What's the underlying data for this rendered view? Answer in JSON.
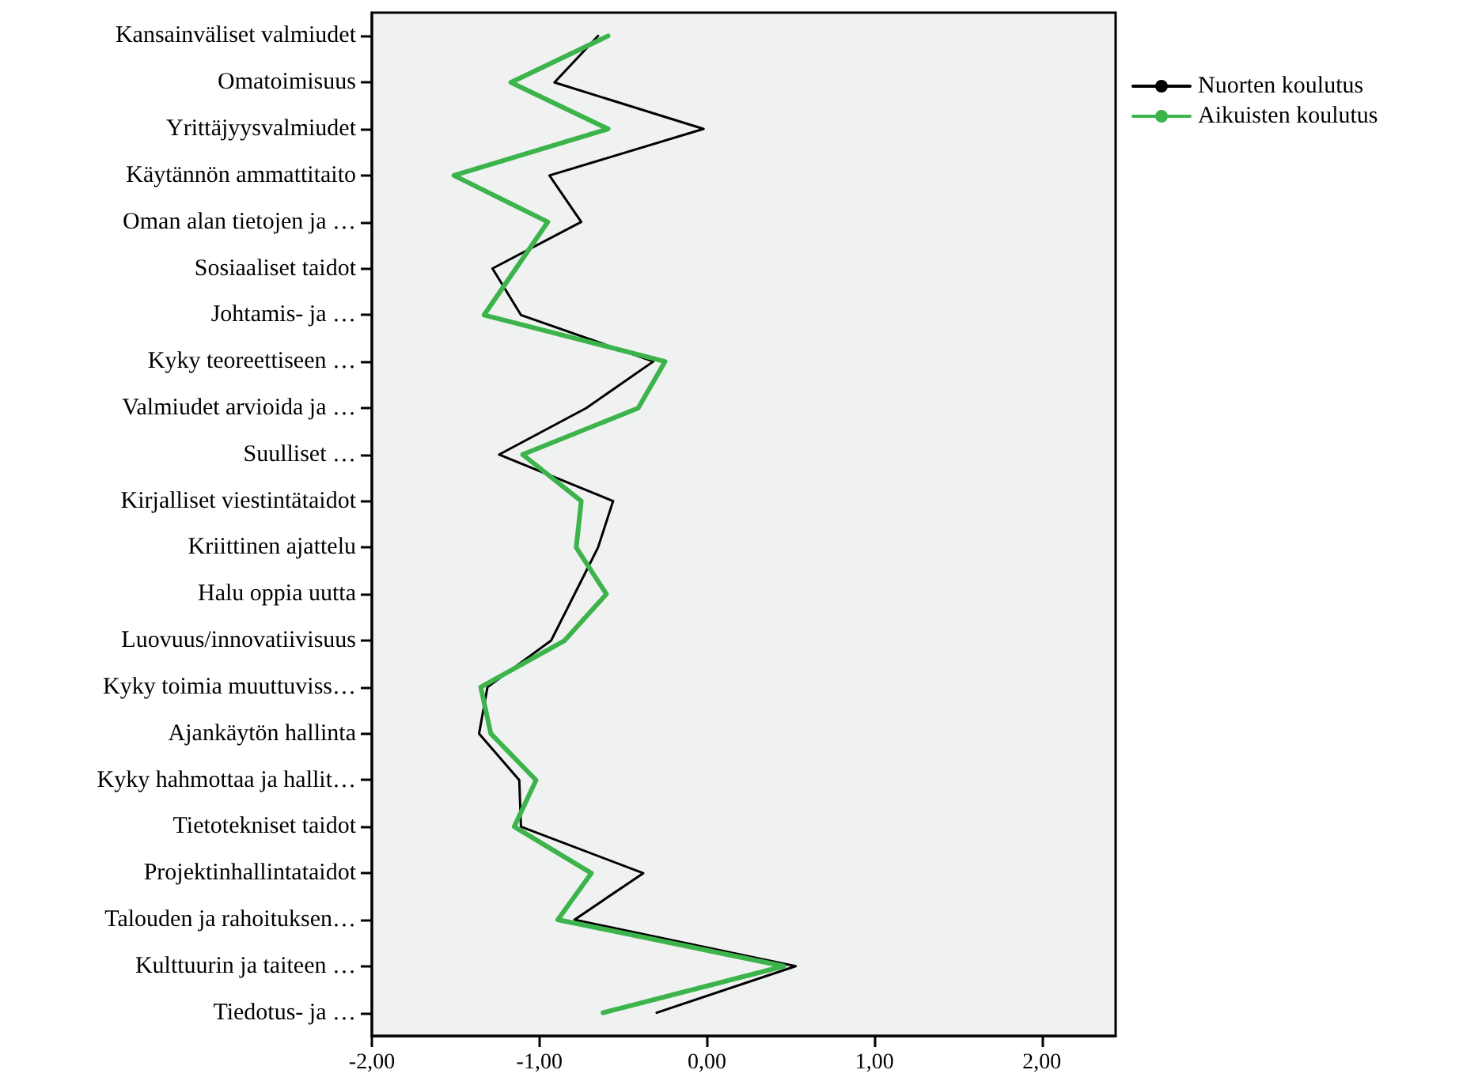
{
  "chart_data": {
    "type": "line",
    "orientation": "horizontal",
    "categories": [
      "Kansainväliset valmiudet",
      "Omatoimisuus",
      "Yrittäjyysvalmiudet",
      "Käytännön ammattitaito",
      "Oman alan tietojen ja …",
      "Sosiaaliset taidot",
      "Johtamis- ja …",
      "Kyky teoreettiseen …",
      "Valmiudet arvioida ja …",
      "Suulliset …",
      "Kirjalliset viestintätaidot",
      "Kriittinen ajattelu",
      "Halu oppia uutta",
      "Luovuus/innovatiivisuus",
      "Kyky toimia muuttuviss…",
      "Ajankäytön hallinta",
      "Kyky hahmottaa ja hallit…",
      "Tietotekniset taidot",
      "Projektinhallintataidot",
      "Talouden ja rahoituksen…",
      "Kulttuurin ja taiteen …",
      "Tiedotus- ja …"
    ],
    "series": [
      {
        "name": "Nuorten koulutus",
        "color": "#000000",
        "values": [
          -0.65,
          -0.91,
          -0.02,
          -0.94,
          -0.75,
          -1.28,
          -1.11,
          -0.32,
          -0.72,
          -1.24,
          -0.56,
          -0.65,
          -0.79,
          -0.93,
          -1.31,
          -1.36,
          -1.12,
          -1.11,
          -0.38,
          -0.79,
          0.53,
          -0.3
        ]
      },
      {
        "name": "Aikuisten koulutus",
        "color": "#3cb44b",
        "values": [
          -0.59,
          -1.17,
          -0.59,
          -1.51,
          -0.95,
          -1.14,
          -1.33,
          -0.25,
          -0.41,
          -1.1,
          -0.75,
          -0.78,
          -0.6,
          -0.85,
          -1.35,
          -1.29,
          -1.02,
          -1.15,
          -0.69,
          -0.89,
          0.46,
          -0.62
        ]
      }
    ],
    "xlim": [
      -2,
      2.44
    ],
    "xticks": [
      {
        "value": -2,
        "label": "-2,00"
      },
      {
        "value": -1,
        "label": "-1,00"
      },
      {
        "value": 0,
        "label": "0,00"
      },
      {
        "value": 1,
        "label": "1,00"
      },
      {
        "value": 2,
        "label": "2,00"
      }
    ],
    "legend": "top right",
    "grid": false,
    "marker": "none",
    "line_style": "solid"
  }
}
